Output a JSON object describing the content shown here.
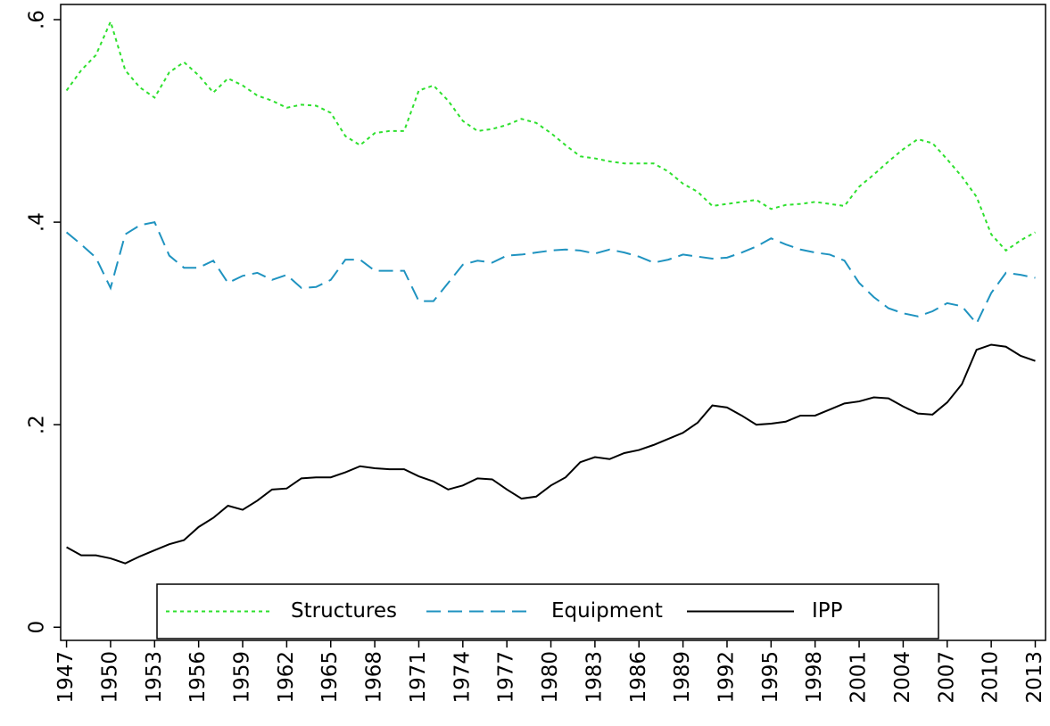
{
  "chart_data": {
    "type": "line",
    "x": [
      1947,
      1948,
      1949,
      1950,
      1951,
      1952,
      1953,
      1954,
      1955,
      1956,
      1957,
      1958,
      1959,
      1960,
      1961,
      1962,
      1963,
      1964,
      1965,
      1966,
      1967,
      1968,
      1969,
      1970,
      1971,
      1972,
      1973,
      1974,
      1975,
      1976,
      1977,
      1978,
      1979,
      1980,
      1981,
      1982,
      1983,
      1984,
      1985,
      1986,
      1987,
      1988,
      1989,
      1990,
      1991,
      1992,
      1993,
      1994,
      1995,
      1996,
      1997,
      1998,
      1999,
      2000,
      2001,
      2002,
      2003,
      2004,
      2005,
      2006,
      2007,
      2008,
      2009,
      2010,
      2011,
      2012,
      2013
    ],
    "series": [
      {
        "name": "Structures",
        "color": "#2ee02e",
        "values": [
          0.53,
          0.55,
          0.565,
          0.598,
          0.55,
          0.533,
          0.523,
          0.548,
          0.558,
          0.545,
          0.528,
          0.542,
          0.535,
          0.525,
          0.52,
          0.513,
          0.516,
          0.515,
          0.508,
          0.485,
          0.476,
          0.488,
          0.49,
          0.49,
          0.53,
          0.535,
          0.52,
          0.5,
          0.49,
          0.492,
          0.496,
          0.502,
          0.498,
          0.488,
          0.476,
          0.465,
          0.463,
          0.46,
          0.458,
          0.458,
          0.458,
          0.45,
          0.438,
          0.43,
          0.416,
          0.418,
          0.42,
          0.422,
          0.413,
          0.417,
          0.418,
          0.42,
          0.418,
          0.416,
          0.435,
          0.447,
          0.46,
          0.472,
          0.482,
          0.478,
          0.462,
          0.445,
          0.425,
          0.388,
          0.372,
          0.382,
          0.39
        ]
      },
      {
        "name": "Equipment",
        "color": "#1f93c0",
        "values": [
          0.39,
          0.378,
          0.365,
          0.335,
          0.388,
          0.397,
          0.4,
          0.367,
          0.355,
          0.355,
          0.362,
          0.34,
          0.347,
          0.35,
          0.343,
          0.348,
          0.335,
          0.336,
          0.343,
          0.363,
          0.363,
          0.352,
          0.352,
          0.352,
          0.322,
          0.322,
          0.34,
          0.358,
          0.362,
          0.36,
          0.367,
          0.368,
          0.37,
          0.372,
          0.373,
          0.372,
          0.369,
          0.373,
          0.37,
          0.366,
          0.36,
          0.363,
          0.368,
          0.366,
          0.364,
          0.365,
          0.37,
          0.376,
          0.384,
          0.378,
          0.373,
          0.37,
          0.368,
          0.362,
          0.34,
          0.326,
          0.315,
          0.31,
          0.307,
          0.312,
          0.32,
          0.317,
          0.3,
          0.33,
          0.35,
          0.348,
          0.345
        ]
      },
      {
        "name": "IPP",
        "color": "#000000",
        "values": [
          0.079,
          0.071,
          0.071,
          0.068,
          0.063,
          0.07,
          0.076,
          0.082,
          0.086,
          0.099,
          0.108,
          0.12,
          0.116,
          0.125,
          0.136,
          0.137,
          0.147,
          0.148,
          0.148,
          0.153,
          0.159,
          0.157,
          0.156,
          0.156,
          0.149,
          0.144,
          0.136,
          0.14,
          0.147,
          0.146,
          0.136,
          0.127,
          0.129,
          0.14,
          0.148,
          0.163,
          0.168,
          0.166,
          0.172,
          0.175,
          0.18,
          0.186,
          0.192,
          0.202,
          0.219,
          0.217,
          0.209,
          0.2,
          0.201,
          0.203,
          0.209,
          0.209,
          0.215,
          0.221,
          0.223,
          0.227,
          0.226,
          0.218,
          0.211,
          0.21,
          0.222,
          0.24,
          0.274,
          0.279,
          0.277,
          0.268,
          0.263
        ]
      }
    ],
    "xlim": [
      1946.6,
      2013.7
    ],
    "xticks": [
      1947,
      1950,
      1953,
      1956,
      1959,
      1962,
      1965,
      1968,
      1971,
      1974,
      1977,
      1980,
      1983,
      1986,
      1989,
      1992,
      1995,
      1998,
      2001,
      2004,
      2007,
      2010,
      2013
    ],
    "ylim": [
      -0.013,
      0.615
    ],
    "yticks": [
      0,
      {
        "value": 0.2,
        "label": ".2"
      },
      {
        "value": 0.4,
        "label": ".4"
      },
      {
        "value": 0.6,
        "label": ".6"
      }
    ],
    "grid": false,
    "legend": "bottom"
  }
}
